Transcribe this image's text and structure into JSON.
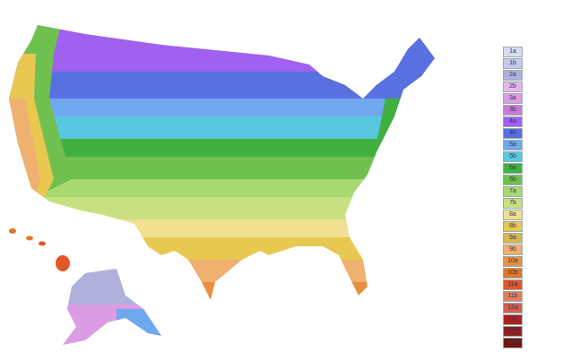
{
  "legend": {
    "zones": [
      {
        "label": "1a",
        "color": "#d8dcf5"
      },
      {
        "label": "1b",
        "color": "#c8c8ec"
      },
      {
        "label": "2a",
        "color": "#b0b0dc"
      },
      {
        "label": "2b",
        "color": "#e8b4ec"
      },
      {
        "label": "3a",
        "color": "#dc9ce4"
      },
      {
        "label": "3b",
        "color": "#c87cd8"
      },
      {
        "label": "4a",
        "color": "#a060f0"
      },
      {
        "label": "4b",
        "color": "#5870e0"
      },
      {
        "label": "5a",
        "color": "#70a8f0"
      },
      {
        "label": "5b",
        "color": "#58c8e0"
      },
      {
        "label": "6a",
        "color": "#40b040"
      },
      {
        "label": "6b",
        "color": "#70c050"
      },
      {
        "label": "7a",
        "color": "#a8d870"
      },
      {
        "label": "7b",
        "color": "#c8e080"
      },
      {
        "label": "8a",
        "color": "#f0e090"
      },
      {
        "label": "8b",
        "color": "#e8c850"
      },
      {
        "label": "9a",
        "color": "#d8b850"
      },
      {
        "label": "9b",
        "color": "#f0b070"
      },
      {
        "label": "10a",
        "color": "#e89040"
      },
      {
        "label": "10b",
        "color": "#e07828"
      },
      {
        "label": "11a",
        "color": "#e05828"
      },
      {
        "label": "11b",
        "color": "#e08060"
      },
      {
        "label": "12a",
        "color": "#d06050"
      },
      {
        "label": "12b",
        "color": "#b02020"
      },
      {
        "label": "13a",
        "color": "#902020"
      },
      {
        "label": "13b",
        "color": "#701810"
      }
    ]
  }
}
